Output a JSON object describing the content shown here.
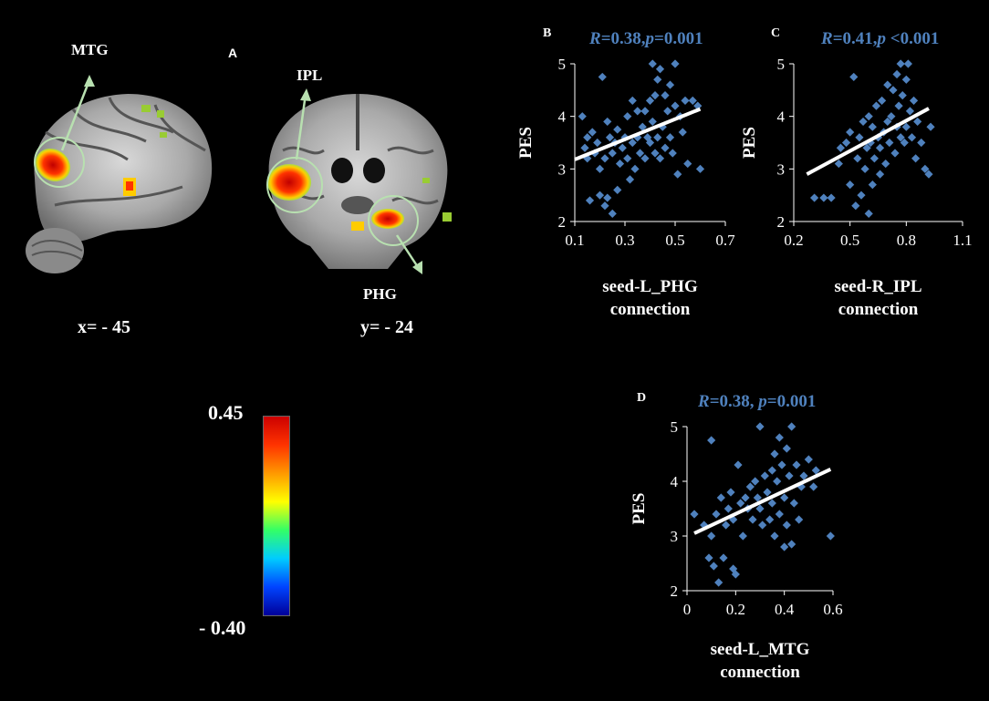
{
  "panel_a": {
    "letter": "A",
    "sagittal_label": "MTG",
    "coronal_label_top": "IPL",
    "coronal_label_bottom": "PHG",
    "sagittal_coord": "x= - 45",
    "coronal_coord": "y= - 24"
  },
  "colorbar": {
    "max_label": "0.45",
    "min_label": "- 0.40",
    "colors": [
      "#cc0000",
      "#ff3300",
      "#ff9900",
      "#ffff00",
      "#33ff66",
      "#00ccff",
      "#0044ff",
      "#000099"
    ]
  },
  "colors": {
    "points": "#4f81bd",
    "stat_text": "#4f81bd",
    "fit_line": "#ffffff",
    "axes": "#ffffff"
  },
  "chart_data": [
    {
      "id": "B",
      "type": "scatter",
      "letter": "B",
      "stat_R": "R",
      "stat_rest": "=0.38,",
      "stat_p": "p",
      "stat_tail": "=0.001",
      "ylabel": "PES",
      "xlabel_line1": "seed-L_PHG",
      "xlabel_line2": "connection",
      "xlim": [
        0.1,
        0.7
      ],
      "ylim": [
        2,
        5
      ],
      "xticks": [
        0.1,
        0.3,
        0.5,
        0.7
      ],
      "xtick_labels": [
        "0.1",
        "0.3",
        "0.5",
        "0.7"
      ],
      "yticks": [
        2,
        3,
        4,
        5
      ],
      "ytick_labels": [
        "2",
        "3",
        "4",
        "5"
      ],
      "fit": [
        [
          0.1,
          3.18
        ],
        [
          0.6,
          4.14
        ]
      ],
      "points": [
        [
          0.13,
          4.0
        ],
        [
          0.14,
          3.4
        ],
        [
          0.15,
          3.2
        ],
        [
          0.15,
          3.6
        ],
        [
          0.16,
          2.4
        ],
        [
          0.17,
          3.7
        ],
        [
          0.18,
          3.3
        ],
        [
          0.19,
          3.5
        ],
        [
          0.2,
          2.5
        ],
        [
          0.2,
          3.0
        ],
        [
          0.21,
          4.75
        ],
        [
          0.22,
          2.3
        ],
        [
          0.22,
          3.2
        ],
        [
          0.23,
          2.45
        ],
        [
          0.23,
          3.9
        ],
        [
          0.24,
          3.6
        ],
        [
          0.25,
          2.15
        ],
        [
          0.25,
          3.3
        ],
        [
          0.26,
          3.5
        ],
        [
          0.27,
          2.6
        ],
        [
          0.27,
          3.75
        ],
        [
          0.28,
          3.1
        ],
        [
          0.29,
          3.4
        ],
        [
          0.3,
          3.6
        ],
        [
          0.31,
          4.0
        ],
        [
          0.31,
          3.2
        ],
        [
          0.32,
          2.8
        ],
        [
          0.33,
          3.5
        ],
        [
          0.33,
          4.3
        ],
        [
          0.34,
          3.0
        ],
        [
          0.35,
          3.6
        ],
        [
          0.35,
          4.1
        ],
        [
          0.36,
          3.3
        ],
        [
          0.37,
          3.8
        ],
        [
          0.38,
          4.1
        ],
        [
          0.38,
          3.2
        ],
        [
          0.39,
          3.6
        ],
        [
          0.4,
          4.3
        ],
        [
          0.4,
          3.5
        ],
        [
          0.41,
          5.0
        ],
        [
          0.41,
          3.9
        ],
        [
          0.42,
          4.4
        ],
        [
          0.42,
          3.3
        ],
        [
          0.43,
          4.7
        ],
        [
          0.43,
          3.6
        ],
        [
          0.44,
          4.9
        ],
        [
          0.44,
          3.2
        ],
        [
          0.45,
          3.8
        ],
        [
          0.46,
          4.4
        ],
        [
          0.46,
          3.4
        ],
        [
          0.47,
          4.1
        ],
        [
          0.48,
          4.6
        ],
        [
          0.48,
          3.6
        ],
        [
          0.49,
          3.3
        ],
        [
          0.5,
          5.0
        ],
        [
          0.5,
          4.2
        ],
        [
          0.51,
          2.9
        ],
        [
          0.52,
          4.0
        ],
        [
          0.53,
          3.7
        ],
        [
          0.54,
          4.3
        ],
        [
          0.55,
          3.1
        ],
        [
          0.57,
          4.3
        ],
        [
          0.59,
          4.2
        ],
        [
          0.6,
          3.0
        ]
      ]
    },
    {
      "id": "C",
      "type": "scatter",
      "letter": "C",
      "stat_R": "R",
      "stat_rest": "=0.41,",
      "stat_p": "p",
      "stat_tail": " <0.001",
      "ylabel": "PES",
      "xlabel_line1": "seed-R_IPL",
      "xlabel_line2": "connection",
      "xlim": [
        0.2,
        1.1
      ],
      "ylim": [
        2,
        5
      ],
      "xticks": [
        0.2,
        0.5,
        0.8,
        1.1
      ],
      "xtick_labels": [
        "0.2",
        "0.5",
        "0.8",
        "1.1"
      ],
      "yticks": [
        2,
        3,
        4,
        5
      ],
      "ytick_labels": [
        "2",
        "3",
        "4",
        "5"
      ],
      "fit": [
        [
          0.27,
          2.9
        ],
        [
          0.92,
          4.15
        ]
      ],
      "points": [
        [
          0.31,
          2.45
        ],
        [
          0.36,
          2.45
        ],
        [
          0.4,
          2.45
        ],
        [
          0.44,
          3.1
        ],
        [
          0.45,
          3.4
        ],
        [
          0.48,
          3.5
        ],
        [
          0.5,
          2.7
        ],
        [
          0.5,
          3.7
        ],
        [
          0.52,
          4.75
        ],
        [
          0.53,
          2.3
        ],
        [
          0.54,
          3.2
        ],
        [
          0.55,
          3.6
        ],
        [
          0.56,
          2.5
        ],
        [
          0.57,
          3.9
        ],
        [
          0.58,
          3.0
        ],
        [
          0.59,
          3.4
        ],
        [
          0.6,
          2.15
        ],
        [
          0.6,
          4.0
        ],
        [
          0.61,
          3.5
        ],
        [
          0.62,
          2.7
        ],
        [
          0.62,
          3.8
        ],
        [
          0.63,
          3.2
        ],
        [
          0.64,
          4.2
        ],
        [
          0.65,
          3.6
        ],
        [
          0.66,
          2.9
        ],
        [
          0.66,
          3.4
        ],
        [
          0.67,
          4.3
        ],
        [
          0.68,
          3.7
        ],
        [
          0.69,
          3.1
        ],
        [
          0.7,
          3.9
        ],
        [
          0.7,
          4.6
        ],
        [
          0.71,
          3.5
        ],
        [
          0.72,
          4.0
        ],
        [
          0.73,
          4.5
        ],
        [
          0.74,
          3.3
        ],
        [
          0.75,
          4.8
        ],
        [
          0.75,
          3.8
        ],
        [
          0.76,
          4.2
        ],
        [
          0.77,
          5.0
        ],
        [
          0.77,
          3.6
        ],
        [
          0.78,
          4.4
        ],
        [
          0.79,
          3.5
        ],
        [
          0.8,
          4.7
        ],
        [
          0.8,
          3.8
        ],
        [
          0.81,
          5.0
        ],
        [
          0.82,
          4.1
        ],
        [
          0.83,
          3.6
        ],
        [
          0.84,
          4.3
        ],
        [
          0.85,
          3.2
        ],
        [
          0.86,
          3.9
        ],
        [
          0.88,
          3.5
        ],
        [
          0.9,
          3.0
        ],
        [
          0.92,
          2.9
        ],
        [
          0.93,
          3.8
        ]
      ]
    },
    {
      "id": "D",
      "type": "scatter",
      "letter": "D",
      "stat_R": "R",
      "stat_rest": "=0.38, ",
      "stat_p": "p",
      "stat_tail": "=0.001",
      "ylabel": "PES",
      "xlabel_line1": "seed-L_MTG",
      "xlabel_line2": "connection",
      "xlim": [
        0,
        0.6
      ],
      "ylim": [
        2,
        5
      ],
      "xticks": [
        0,
        0.2,
        0.4,
        0.6
      ],
      "xtick_labels": [
        "0",
        "0.2",
        "0.4",
        "0.6"
      ],
      "yticks": [
        2,
        3,
        4,
        5
      ],
      "ytick_labels": [
        "2",
        "3",
        "4",
        "5"
      ],
      "fit": [
        [
          0.03,
          3.05
        ],
        [
          0.59,
          4.22
        ]
      ],
      "points": [
        [
          0.03,
          3.4
        ],
        [
          0.07,
          3.2
        ],
        [
          0.09,
          2.6
        ],
        [
          0.1,
          3.0
        ],
        [
          0.1,
          4.75
        ],
        [
          0.11,
          2.45
        ],
        [
          0.12,
          3.4
        ],
        [
          0.13,
          2.15
        ],
        [
          0.14,
          3.7
        ],
        [
          0.15,
          2.6
        ],
        [
          0.16,
          3.2
        ],
        [
          0.17,
          3.5
        ],
        [
          0.18,
          3.8
        ],
        [
          0.19,
          2.4
        ],
        [
          0.19,
          3.3
        ],
        [
          0.2,
          2.3
        ],
        [
          0.21,
          4.3
        ],
        [
          0.22,
          3.6
        ],
        [
          0.23,
          3.0
        ],
        [
          0.24,
          3.7
        ],
        [
          0.25,
          3.5
        ],
        [
          0.26,
          3.9
        ],
        [
          0.27,
          3.3
        ],
        [
          0.28,
          4.0
        ],
        [
          0.29,
          3.7
        ],
        [
          0.3,
          3.5
        ],
        [
          0.3,
          5.0
        ],
        [
          0.31,
          3.2
        ],
        [
          0.32,
          4.1
        ],
        [
          0.33,
          3.8
        ],
        [
          0.34,
          3.3
        ],
        [
          0.35,
          4.2
        ],
        [
          0.35,
          3.6
        ],
        [
          0.36,
          4.5
        ],
        [
          0.36,
          3.0
        ],
        [
          0.37,
          4.0
        ],
        [
          0.38,
          4.8
        ],
        [
          0.38,
          3.4
        ],
        [
          0.39,
          4.3
        ],
        [
          0.4,
          3.7
        ],
        [
          0.4,
          2.8
        ],
        [
          0.41,
          4.6
        ],
        [
          0.41,
          3.2
        ],
        [
          0.42,
          4.1
        ],
        [
          0.43,
          5.0
        ],
        [
          0.43,
          2.85
        ],
        [
          0.44,
          3.6
        ],
        [
          0.45,
          4.3
        ],
        [
          0.46,
          3.3
        ],
        [
          0.47,
          3.9
        ],
        [
          0.48,
          4.1
        ],
        [
          0.5,
          4.4
        ],
        [
          0.52,
          3.9
        ],
        [
          0.53,
          4.2
        ],
        [
          0.59,
          3.0
        ]
      ]
    }
  ]
}
